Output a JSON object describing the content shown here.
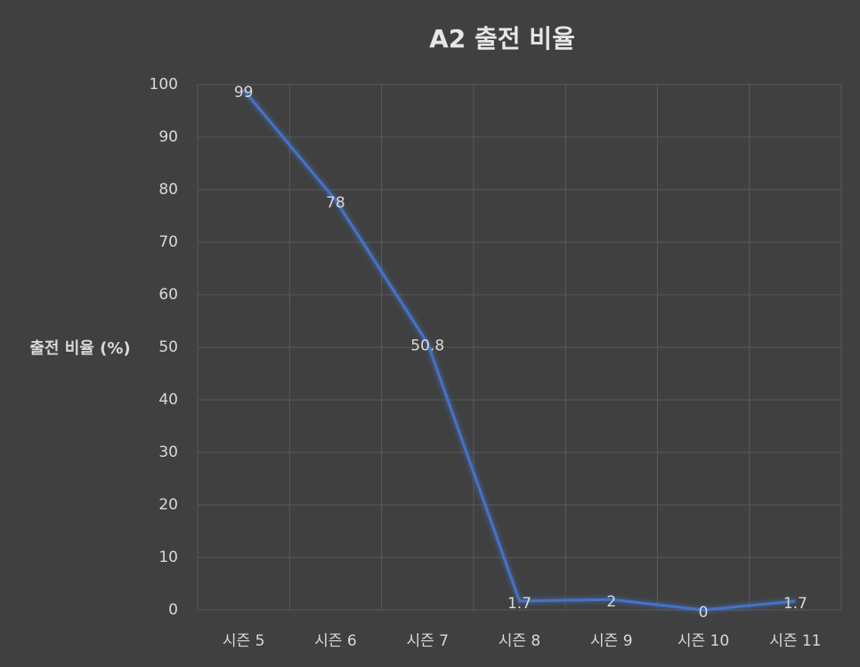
{
  "chart_data": {
    "type": "line",
    "title": "A2 출전 비율",
    "y_label": "출전 비율 (%)",
    "categories": [
      "시즌 5",
      "시즌 6",
      "시즌 7",
      "시즌 8",
      "시즌 9",
      "시즌 10",
      "시즌 11"
    ],
    "series": [
      {
        "name": "출전 비율",
        "color": "#4472c4",
        "values": [
          99,
          78,
          50.8,
          1.7,
          2,
          0,
          1.7
        ]
      }
    ],
    "ylim": [
      0,
      100
    ],
    "yticks": [
      0,
      10,
      20,
      30,
      40,
      50,
      60,
      70,
      80,
      90,
      100
    ],
    "grid": true,
    "data_labels": true
  }
}
